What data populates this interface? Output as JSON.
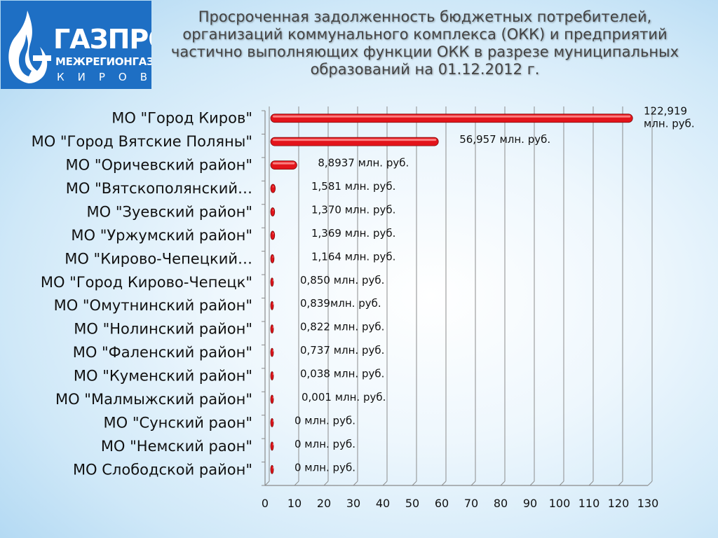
{
  "logo": {
    "line1": "ГАЗПРОМ",
    "line2": "МЕЖРЕГИОНГАЗ",
    "line3": "КИРОВ",
    "colors": {
      "background": "#1e6fc4",
      "foreground": "#ffffff"
    },
    "icon": "flame-icon"
  },
  "title": "Просроченная задолженность бюджетных потребителей, организаций коммунального комплекса (ОКК) и предприятий частично выполняющих функции ОКК в разрезе муниципальных образований на 01.12.2012 г.",
  "chart_data": {
    "type": "bar",
    "orientation": "horizontal",
    "title": "Просроченная задолженность бюджетных потребителей, организаций коммунального комплекса (ОКК) и предприятий частично выполняющих функции ОКК в разрезе муниципальных образований на 01.12.2012 г.",
    "categories": [
      "МО \"Город Киров\"",
      "МО \"Город Вятские Поляны\"",
      "МО \"Оричевский район\"",
      "МО \"Вятскополянский…",
      "МО \"Зуевский район\"",
      "МО \"Уржумский район\"",
      "МО \"Кирово-Чепецкий…",
      "МО \"Город Кирово-Чепецк\"",
      "МО \"Омутнинский район\"",
      "МО \"Нолинский район\"",
      "МО \"Фаленский район\"",
      "МО \"Куменский район\"",
      "МО \"Малмыжский район\"",
      "МО \"Сунский раон\"",
      "МО \"Немский раон\"",
      "МО Слободской район\""
    ],
    "values": [
      122.919,
      56.957,
      8.8937,
      1.581,
      1.37,
      1.369,
      1.164,
      0.85,
      0.839,
      0.822,
      0.737,
      0.038,
      0.001,
      0,
      0,
      0
    ],
    "data_labels": [
      "122,919\nмлн. руб.",
      "56,957 млн. руб.",
      "8,8937 млн. руб.",
      "1,581 млн. руб.",
      "1,370 млн. руб.",
      "1,369 млн. руб.",
      "1,164 млн. руб.",
      "0,850 млн. руб.",
      "0,839млн. руб.",
      "0,822 млн. руб.",
      "0,737 млн. руб.",
      "0,038 млн. руб.",
      "0,001 млн. руб.",
      "0 млн. руб.",
      "0 млн. руб.",
      "0 млн. руб."
    ],
    "xlim": [
      0,
      130
    ],
    "xticks": [
      0,
      10,
      20,
      30,
      40,
      50,
      60,
      70,
      80,
      90,
      100,
      110,
      120,
      130
    ],
    "grid": true,
    "legend": "none",
    "bar_color": "#e3141b"
  }
}
